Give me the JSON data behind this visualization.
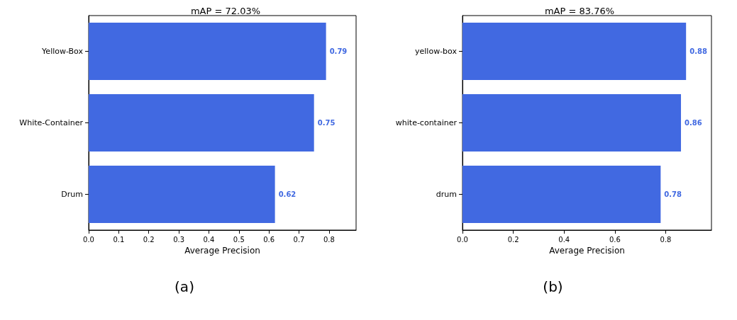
{
  "chart_data": [
    {
      "type": "bar",
      "orientation": "horizontal",
      "title": "mAP = 72.03%",
      "xlabel": "Average Precision",
      "categories": [
        "Yellow-Box",
        "White-Container",
        "Drum"
      ],
      "values": [
        0.79,
        0.75,
        0.62
      ],
      "color": "#4169e1",
      "data_labels": true,
      "xlim": [
        0,
        0.89
      ],
      "xticks": [
        {
          "value": 0,
          "label": "0.0"
        },
        0.1,
        0.2,
        0.3,
        0.4,
        0.5,
        0.6,
        0.7,
        0.8
      ],
      "grid": false,
      "annotations": [
        "(a)"
      ]
    },
    {
      "type": "bar",
      "orientation": "horizontal",
      "title": "mAP = 83.76%",
      "xlabel": "Average Precision",
      "categories": [
        "yellow-box",
        "white-container",
        "drum"
      ],
      "values": [
        0.88,
        0.86,
        0.78
      ],
      "color": "#4169e1",
      "data_labels": true,
      "xlim": [
        0,
        0.98
      ],
      "xticks": [
        {
          "value": 0,
          "label": "0.0"
        },
        0.2,
        0.4,
        0.6,
        0.8
      ],
      "grid": false,
      "annotations": [
        "(b)"
      ]
    }
  ]
}
